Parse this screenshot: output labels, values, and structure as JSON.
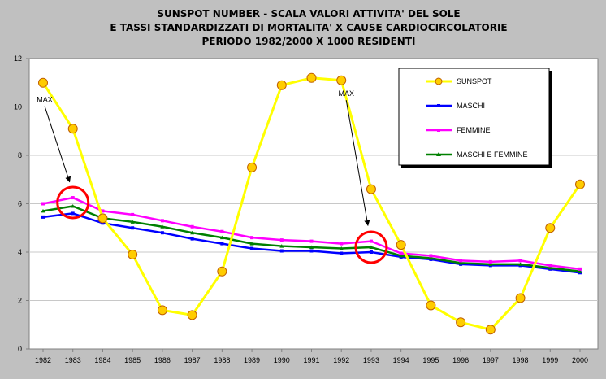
{
  "chart_data": {
    "type": "line",
    "title": [
      "SUNSPOT NUMBER - SCALA VALORI ATTIVITA' DEL SOLE",
      "E TASSI STANDARDIZZATI DI MORTALITA' X CAUSE CARDIOCIRCOLATORIE",
      "PERIODO 1982/2000 X 1000 RESIDENTI"
    ],
    "x": [
      "1982",
      "1983",
      "1984",
      "1985",
      "1986",
      "1987",
      "1988",
      "1989",
      "1990",
      "1991",
      "1992",
      "1993",
      "1994",
      "1995",
      "1996",
      "1997",
      "1998",
      "1999",
      "2000"
    ],
    "ylim": [
      0,
      12
    ],
    "yticks": [
      0,
      2,
      4,
      6,
      8,
      10,
      12
    ],
    "grid": "horizontal",
    "legend_position": "top-right",
    "series": [
      {
        "name": "SUNSPOT",
        "color": "#ffff00",
        "marker": "circle-orange",
        "values": [
          11.0,
          9.1,
          5.4,
          3.9,
          1.6,
          1.4,
          3.2,
          7.5,
          10.9,
          11.2,
          11.1,
          6.6,
          4.3,
          1.8,
          1.1,
          0.8,
          2.1,
          5.0,
          6.8
        ]
      },
      {
        "name": "MASCHI",
        "color": "#0000ff",
        "marker": "square",
        "values": [
          5.45,
          5.6,
          5.2,
          5.0,
          4.8,
          4.55,
          4.35,
          4.15,
          4.05,
          4.05,
          3.95,
          4.0,
          3.8,
          3.7,
          3.5,
          3.45,
          3.45,
          3.3,
          3.15
        ]
      },
      {
        "name": "FEMMINE",
        "color": "#ff00ff",
        "marker": "square",
        "values": [
          6.0,
          6.25,
          5.7,
          5.55,
          5.3,
          5.05,
          4.85,
          4.6,
          4.5,
          4.45,
          4.35,
          4.45,
          3.95,
          3.85,
          3.65,
          3.6,
          3.65,
          3.45,
          3.3
        ]
      },
      {
        "name": "MASCHI E FEMMINE",
        "color": "#008000",
        "marker": "triangle",
        "values": [
          5.7,
          5.9,
          5.4,
          5.25,
          5.05,
          4.8,
          4.6,
          4.35,
          4.25,
          4.2,
          4.15,
          4.2,
          3.85,
          3.75,
          3.55,
          3.5,
          3.5,
          3.35,
          3.2
        ]
      }
    ],
    "annotations": [
      {
        "text": "MAX",
        "x": "1982",
        "y": 10.2,
        "arrow_to": {
          "x": "1983",
          "y": 6.9
        },
        "circle": {
          "x": "1983",
          "y": 6.05
        }
      },
      {
        "text": "MAX",
        "x": "1992",
        "y": 10.45,
        "arrow_to": {
          "x": "1993",
          "y": 5.1
        },
        "circle": {
          "x": "1993",
          "y": 4.2
        }
      }
    ]
  }
}
